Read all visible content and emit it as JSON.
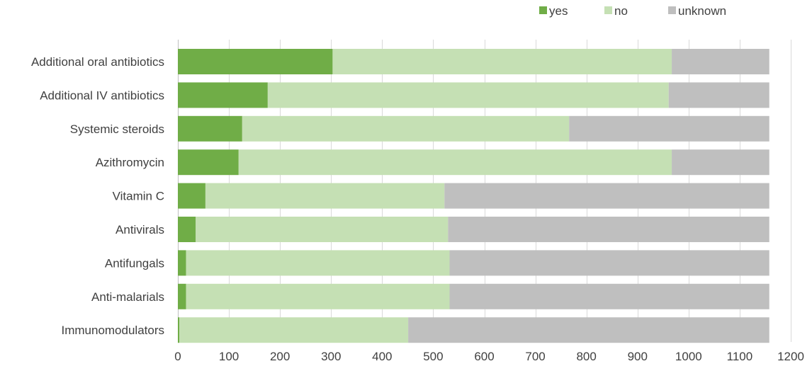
{
  "chart_data": {
    "type": "bar",
    "orientation": "horizontal",
    "stacked": true,
    "categories": [
      "Additional oral antibiotics",
      "Additional IV antibiotics",
      "Systemic steroids",
      "Azithromycin",
      "Vitamin C",
      "Antivirals",
      "Antifungals",
      "Anti-malarials",
      "Immunomodulators"
    ],
    "series": [
      {
        "name": "yes",
        "color": "#70ad47",
        "values": [
          303,
          176,
          126,
          119,
          54,
          35,
          16,
          16,
          3
        ]
      },
      {
        "name": "no",
        "color": "#c5e0b4",
        "values": [
          664,
          785,
          640,
          848,
          468,
          494,
          516,
          516,
          448
        ]
      },
      {
        "name": "unknown",
        "color": "#bfbfbf",
        "values": [
          191,
          197,
          392,
          191,
          636,
          629,
          626,
          626,
          707
        ]
      }
    ],
    "xlim": [
      0,
      1200
    ],
    "xticks": [
      "0",
      "100",
      "200",
      "300",
      "400",
      "500",
      "600",
      "700",
      "800",
      "900",
      "1000",
      "1100",
      "1200"
    ],
    "xlabel": "",
    "ylabel": "",
    "title": "",
    "grid": true,
    "legend_position": "top-right"
  }
}
